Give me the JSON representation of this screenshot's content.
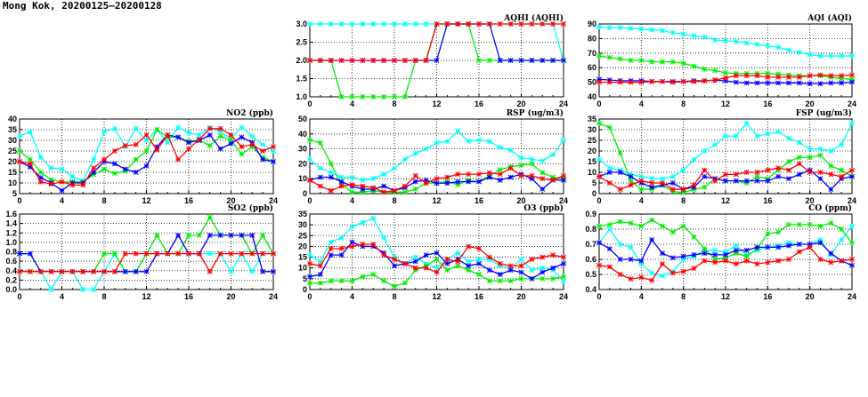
{
  "title": "Mong Kok, 20200125–20200128",
  "colors": {
    "cyan": "#00ffff",
    "green": "#00ee00",
    "blue": "#0000ff",
    "red": "#ff0000"
  },
  "chart_data": [
    {
      "id": "aqhi",
      "type": "line",
      "title": "AQHI (AQHI)",
      "ylim": [
        1.0,
        3.0
      ],
      "yticks": [
        "1.0",
        "1.5",
        "2.0",
        "2.5",
        "3.0"
      ],
      "xlim": [
        0,
        24
      ],
      "xticks": [
        "0",
        "4",
        "8",
        "12",
        "16",
        "20",
        "24"
      ],
      "grid": true,
      "series": [
        {
          "name": "cyan",
          "values": [
            3,
            3,
            3,
            3,
            3,
            3,
            3,
            3,
            3,
            3,
            3,
            3,
            3,
            3,
            3,
            3,
            3,
            3,
            3,
            3,
            3,
            3,
            3,
            3,
            2
          ]
        },
        {
          "name": "green",
          "values": [
            2,
            2,
            2,
            1,
            1,
            1,
            1,
            1,
            1,
            1,
            2,
            2,
            3,
            3,
            3,
            3,
            2,
            2,
            2,
            2,
            2,
            2,
            2,
            2,
            2
          ]
        },
        {
          "name": "blue",
          "values": [
            2,
            2,
            2,
            2,
            2,
            2,
            2,
            2,
            2,
            2,
            2,
            2,
            2,
            3,
            3,
            3,
            3,
            3,
            2,
            2,
            2,
            2,
            2,
            2,
            2
          ]
        },
        {
          "name": "red",
          "values": [
            2,
            2,
            2,
            2,
            2,
            2,
            2,
            2,
            2,
            2,
            2,
            2,
            3,
            3,
            3,
            3,
            3,
            3,
            3,
            3,
            3,
            3,
            3,
            3,
            3
          ]
        }
      ]
    },
    {
      "id": "aqi",
      "type": "line",
      "title": "AQI (AQI)",
      "ylim": [
        40,
        90
      ],
      "yticks": [
        "40",
        "50",
        "60",
        "70",
        "80",
        "90"
      ],
      "xlim": [
        0,
        24
      ],
      "xticks": [
        "0",
        "4",
        "8",
        "12",
        "16",
        "20",
        "24"
      ],
      "grid": true,
      "series": [
        {
          "name": "cyan",
          "values": [
            88,
            87.5,
            87.5,
            87,
            86.5,
            86,
            85.5,
            84,
            83,
            82,
            81,
            79,
            78.5,
            78,
            77,
            76,
            75,
            74,
            72,
            70.5,
            69,
            68,
            68,
            68,
            68
          ]
        },
        {
          "name": "green",
          "values": [
            68,
            67,
            66,
            65,
            65,
            64,
            64,
            64,
            63,
            61,
            59,
            58,
            56.5,
            56,
            56,
            56,
            56,
            55.5,
            55,
            54.5,
            54.5,
            54.5,
            53.5,
            52.5,
            52
          ]
        },
        {
          "name": "blue",
          "values": [
            52,
            51.5,
            51,
            51,
            51,
            50.5,
            50.5,
            50.5,
            50.5,
            51,
            51,
            51.5,
            51,
            50,
            49.5,
            49.5,
            49.5,
            49.5,
            49.5,
            49.5,
            49,
            49,
            49.5,
            49.5,
            50
          ]
        },
        {
          "name": "red",
          "values": [
            50,
            50,
            50,
            50,
            50,
            50.5,
            50.5,
            50,
            50.5,
            50.5,
            51,
            51.5,
            53,
            54.5,
            54.5,
            54.5,
            53.5,
            53.5,
            53.5,
            53.5,
            54.5,
            55,
            54.5,
            54.5,
            55
          ]
        }
      ]
    },
    {
      "id": "no2",
      "type": "line",
      "title": "NO2 (ppb)",
      "ylim": [
        5,
        40
      ],
      "yticks": [
        "5",
        "10",
        "15",
        "20",
        "25",
        "30",
        "35",
        "40"
      ],
      "xlim": [
        0,
        24
      ],
      "xticks": [
        "0",
        "4",
        "8",
        "12",
        "16",
        "20",
        "24"
      ],
      "grid": true,
      "series": [
        {
          "name": "cyan",
          "values": [
            32,
            34,
            22,
            17,
            16.5,
            13,
            11,
            21,
            34,
            35.5,
            27,
            35.5,
            30,
            35,
            29,
            36,
            33.5,
            32.5,
            36,
            34,
            31,
            36,
            32,
            28,
            25
          ]
        },
        {
          "name": "green",
          "values": [
            25,
            21,
            15,
            11.5,
            10.5,
            10.5,
            10.5,
            14,
            16.5,
            14.5,
            15.5,
            21,
            25,
            35,
            31.5,
            31.5,
            29.5,
            30,
            27.5,
            32,
            30,
            23.5,
            27,
            22,
            20
          ]
        },
        {
          "name": "blue",
          "values": [
            20,
            17.5,
            12.5,
            10,
            6.5,
            10,
            10,
            15,
            20,
            19,
            16.5,
            15,
            18,
            27,
            32.5,
            31.5,
            29,
            30,
            32.5,
            26,
            28.5,
            31.5,
            29,
            21,
            20
          ]
        },
        {
          "name": "red",
          "values": [
            20,
            19,
            10.5,
            9.5,
            10.5,
            9,
            9,
            17,
            21,
            25,
            27.5,
            28,
            32.5,
            25.5,
            32.5,
            21,
            26,
            30.5,
            35.5,
            35.5,
            32.5,
            27,
            28,
            25,
            27
          ]
        }
      ]
    },
    {
      "id": "rsp",
      "type": "line",
      "title": "RSP (ug/m3)",
      "ylim": [
        0,
        50
      ],
      "yticks": [
        "0",
        "10",
        "20",
        "30",
        "40",
        "50"
      ],
      "xlim": [
        0,
        24
      ],
      "xticks": [
        "0",
        "4",
        "8",
        "12",
        "16",
        "20",
        "24"
      ],
      "grid": true,
      "series": [
        {
          "name": "cyan",
          "values": [
            23,
            17,
            14,
            11,
            11,
            9,
            10,
            13,
            17,
            23,
            27,
            30,
            34,
            35,
            42,
            35,
            36,
            35,
            31,
            29,
            24,
            23,
            22,
            26,
            36
          ]
        },
        {
          "name": "green",
          "values": [
            36,
            34,
            20,
            6,
            1,
            1,
            2,
            1,
            1,
            1,
            3,
            7,
            7,
            8,
            6,
            9,
            8,
            12,
            16,
            18,
            19,
            20,
            14,
            11,
            10
          ]
        },
        {
          "name": "blue",
          "values": [
            9,
            11,
            11,
            8,
            5,
            3,
            3,
            5,
            2,
            4,
            8,
            9,
            7,
            7,
            8,
            8,
            8,
            11,
            9,
            11,
            13,
            10,
            3,
            9,
            9
          ]
        },
        {
          "name": "red",
          "values": [
            9,
            5,
            2,
            5,
            6,
            5,
            4,
            1,
            2,
            5,
            12,
            7,
            10,
            11,
            13,
            13,
            13,
            14,
            13,
            17,
            12,
            12,
            10,
            9,
            12
          ]
        }
      ]
    },
    {
      "id": "fsp",
      "type": "line",
      "title": "FSP (ug/m3)",
      "ylim": [
        0,
        35
      ],
      "yticks": [
        "0",
        "5",
        "10",
        "15",
        "20",
        "25",
        "30",
        "35"
      ],
      "xlim": [
        0,
        24
      ],
      "xticks": [
        "0",
        "4",
        "8",
        "12",
        "16",
        "20",
        "24"
      ],
      "grid": true,
      "series": [
        {
          "name": "cyan",
          "values": [
            16,
            12,
            11,
            9,
            8,
            7,
            7,
            8,
            11,
            16,
            20,
            23,
            27,
            27,
            33,
            27,
            28,
            29,
            26,
            24,
            21,
            21,
            20,
            23,
            33
          ]
        },
        {
          "name": "green",
          "values": [
            33,
            31,
            19,
            6,
            2,
            2,
            4,
            1,
            0.5,
            2,
            3,
            7,
            6,
            6,
            5,
            8,
            7,
            11,
            15,
            17,
            17,
            18,
            13,
            11,
            8
          ]
        },
        {
          "name": "blue",
          "values": [
            8,
            10,
            10,
            8,
            5,
            3,
            4,
            5,
            2,
            3,
            8,
            7,
            6,
            6,
            6,
            6,
            6,
            8,
            7,
            9,
            11,
            7,
            2,
            7,
            8
          ]
        },
        {
          "name": "red",
          "values": [
            8,
            5,
            2,
            4,
            6,
            5,
            5,
            2,
            2,
            4,
            11,
            6,
            9,
            9,
            10,
            10,
            11,
            12,
            11,
            14,
            10,
            10,
            9,
            8,
            11
          ]
        }
      ]
    },
    {
      "id": "so2",
      "type": "line",
      "title": "SO2 (ppb)",
      "ylim": [
        0,
        1.6
      ],
      "yticks": [
        "0.0",
        "0.2",
        "0.4",
        "0.6",
        "0.8",
        "1.0",
        "1.2",
        "1.4",
        "1.6"
      ],
      "xlim": [
        0,
        24
      ],
      "xticks": [
        "0",
        "4",
        "8",
        "12",
        "16",
        "20",
        "24"
      ],
      "grid": true,
      "series": [
        {
          "name": "cyan",
          "values": [
            0.76,
            0.76,
            0.38,
            0,
            0.38,
            0.38,
            0,
            0,
            0.38,
            0.76,
            0.38,
            0.38,
            0.76,
            0.76,
            0.76,
            0.76,
            0.76,
            0.76,
            0.76,
            0.76,
            0.38,
            0.76,
            0.38,
            0.76,
            0.76
          ]
        },
        {
          "name": "green",
          "values": [
            0.38,
            0.38,
            0.38,
            0.38,
            0.38,
            0.38,
            0.38,
            0.38,
            0.76,
            0.76,
            0.38,
            0.38,
            0.76,
            1.15,
            0.76,
            0.76,
            1.15,
            1.15,
            1.53,
            1.15,
            1.15,
            1.15,
            0.76,
            1.15,
            0.76
          ]
        },
        {
          "name": "blue",
          "values": [
            0.76,
            0.76,
            0.38,
            0.38,
            0.38,
            0.38,
            0.38,
            0.38,
            0.38,
            0.38,
            0.38,
            0.38,
            0.38,
            0.76,
            0.76,
            1.15,
            0.76,
            0.76,
            1.15,
            1.15,
            1.15,
            1.15,
            1.15,
            0.38,
            0.38
          ]
        },
        {
          "name": "red",
          "values": [
            0.38,
            0.38,
            0.38,
            0.38,
            0.38,
            0.38,
            0.38,
            0.38,
            0.38,
            0.38,
            0.76,
            0.76,
            0.76,
            0.76,
            0.76,
            0.76,
            0.76,
            0.76,
            0.38,
            0.76,
            0.76,
            0.76,
            0.76,
            0.76,
            0.76
          ]
        }
      ]
    },
    {
      "id": "o3",
      "type": "line",
      "title": "O3 (ppb)",
      "ylim": [
        0,
        35
      ],
      "yticks": [
        "0",
        "5",
        "10",
        "15",
        "20",
        "25",
        "30",
        "35"
      ],
      "xlim": [
        0,
        24
      ],
      "xticks": [
        "0",
        "4",
        "8",
        "12",
        "16",
        "20",
        "24"
      ],
      "grid": true,
      "series": [
        {
          "name": "cyan",
          "values": [
            16,
            13,
            22,
            24,
            29,
            31,
            33,
            24,
            15,
            12,
            15,
            12,
            10,
            14,
            17,
            13,
            14,
            14,
            11,
            10,
            14,
            9,
            10,
            9,
            4
          ]
        },
        {
          "name": "green",
          "values": [
            3,
            3,
            4,
            4,
            4,
            6,
            7,
            4,
            1.5,
            3,
            9,
            11,
            14,
            9,
            11,
            9,
            7,
            4,
            4,
            4,
            5,
            5,
            5,
            5,
            6
          ]
        },
        {
          "name": "blue",
          "values": [
            6,
            7,
            16,
            16,
            22,
            20,
            20,
            17,
            11,
            12,
            13,
            16,
            17,
            12,
            14,
            11,
            12,
            9,
            7,
            9,
            8,
            5,
            8,
            10,
            12
          ]
        },
        {
          "name": "red",
          "values": [
            12,
            11,
            19,
            19,
            20,
            21,
            21,
            16,
            14,
            12,
            10,
            10,
            8,
            14,
            13,
            20,
            19,
            15,
            12,
            11,
            11,
            14,
            15,
            16,
            15
          ]
        }
      ]
    },
    {
      "id": "co",
      "type": "line",
      "title": "CO (ppm)",
      "ylim": [
        0.4,
        0.9
      ],
      "yticks": [
        "0.4",
        "0.5",
        "0.6",
        "0.7",
        "0.8",
        "0.9"
      ],
      "xlim": [
        0,
        24
      ],
      "xticks": [
        "0",
        "4",
        "8",
        "12",
        "16",
        "20",
        "24"
      ],
      "grid": true,
      "series": [
        {
          "name": "cyan",
          "values": [
            0.71,
            0.8,
            0.7,
            0.68,
            0.57,
            0.51,
            0.49,
            0.52,
            0.6,
            0.62,
            0.66,
            0.66,
            0.65,
            0.69,
            0.63,
            0.66,
            0.68,
            0.69,
            0.71,
            0.7,
            0.7,
            0.73,
            0.63,
            0.73,
            0.82
          ]
        },
        {
          "name": "green",
          "values": [
            0.82,
            0.83,
            0.85,
            0.84,
            0.82,
            0.86,
            0.82,
            0.78,
            0.82,
            0.75,
            0.67,
            0.6,
            0.61,
            0.64,
            0.62,
            0.67,
            0.77,
            0.78,
            0.83,
            0.83,
            0.83,
            0.82,
            0.84,
            0.8,
            0.71
          ]
        },
        {
          "name": "blue",
          "values": [
            0.71,
            0.67,
            0.6,
            0.6,
            0.59,
            0.73,
            0.64,
            0.61,
            0.62,
            0.63,
            0.64,
            0.63,
            0.63,
            0.66,
            0.66,
            0.68,
            0.68,
            0.68,
            0.69,
            0.7,
            0.7,
            0.71,
            0.64,
            0.59,
            0.56
          ]
        },
        {
          "name": "red",
          "values": [
            0.56,
            0.55,
            0.5,
            0.47,
            0.48,
            0.46,
            0.57,
            0.51,
            0.52,
            0.54,
            0.59,
            0.58,
            0.59,
            0.57,
            0.59,
            0.57,
            0.58,
            0.59,
            0.6,
            0.65,
            0.68,
            0.6,
            0.58,
            0.59,
            0.6
          ]
        }
      ]
    }
  ]
}
